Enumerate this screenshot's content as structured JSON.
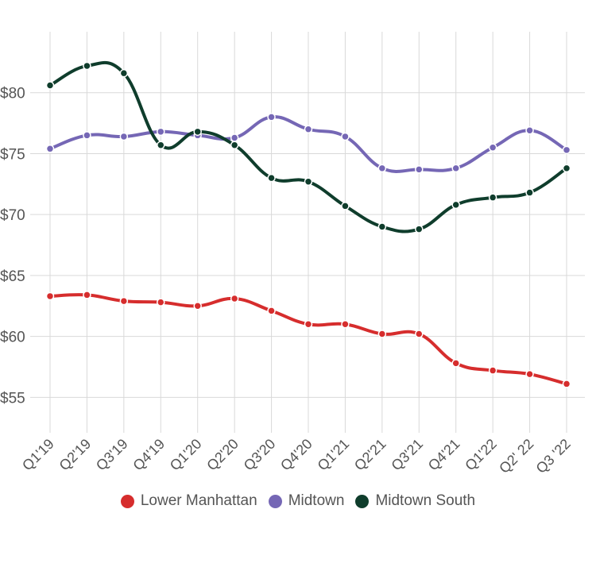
{
  "chart_data": {
    "type": "line",
    "title": "",
    "xlabel": "",
    "ylabel": "",
    "categories": [
      "Q1'19",
      "Q2'19",
      "Q3'19",
      "Q4'19",
      "Q1'20",
      "Q2'20",
      "Q3'20",
      "Q4'20",
      "Q1'21",
      "Q2'21",
      "Q3'21",
      "Q4'21",
      "Q1'22",
      "Q2' 22",
      "Q3 '22"
    ],
    "ylim": [
      53,
      85
    ],
    "yticks": [
      55,
      60,
      65,
      70,
      75,
      80
    ],
    "ytick_labels": [
      "$55",
      "$60",
      "$65",
      "$70",
      "$75",
      "$80"
    ],
    "grid": true,
    "legend_position": "bottom",
    "series": [
      {
        "name": "Lower Manhattan",
        "color": "#d62d2d",
        "values": [
          63.3,
          63.4,
          62.9,
          62.8,
          62.5,
          63.1,
          62.1,
          61.0,
          61.0,
          60.2,
          60.2,
          57.8,
          57.2,
          56.9,
          56.1
        ]
      },
      {
        "name": "Midtown",
        "color": "#7567b5",
        "values": [
          75.4,
          76.5,
          76.4,
          76.8,
          76.5,
          76.3,
          78.0,
          77.0,
          76.4,
          73.8,
          73.7,
          73.8,
          75.5,
          76.9,
          75.3
        ]
      },
      {
        "name": "Midtown South",
        "color": "#0f3d2c",
        "values": [
          80.6,
          82.2,
          81.6,
          75.7,
          76.8,
          75.7,
          73.0,
          72.7,
          70.7,
          69.0,
          68.8,
          70.8,
          71.4,
          71.8,
          73.8
        ]
      }
    ]
  }
}
